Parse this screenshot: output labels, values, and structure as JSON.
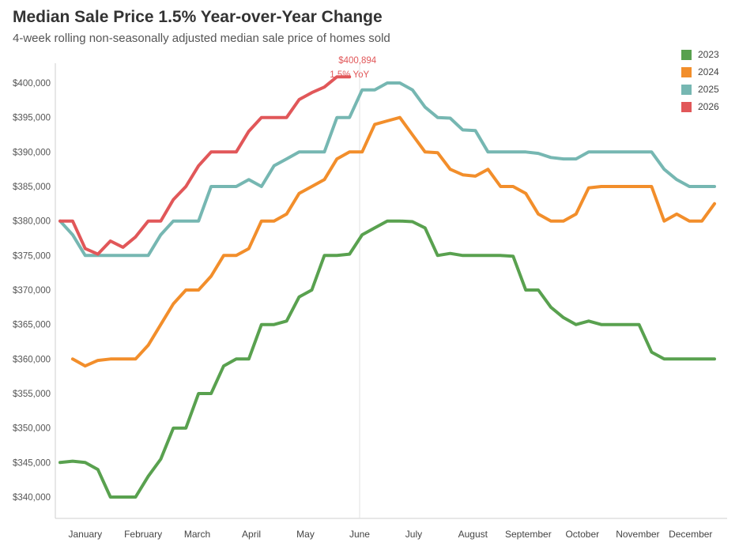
{
  "chart_data": {
    "type": "line",
    "title": "Median Sale Price 1.5% Year-over-Year Change",
    "subtitle": "4-week rolling non-seasonally adjusted median sale price of homes sold",
    "xlabel": "",
    "ylabel": "",
    "ylim": [
      337500,
      403000
    ],
    "xlim": [
      0,
      52
    ],
    "grid": false,
    "legend_position": "top-right",
    "y_ticks": [
      340000,
      345000,
      350000,
      355000,
      360000,
      365000,
      370000,
      375000,
      380000,
      385000,
      390000,
      395000,
      400000
    ],
    "y_tick_labels": [
      "$340,000",
      "$345,000",
      "$350,000",
      "$355,000",
      "$360,000",
      "$365,000",
      "$370,000",
      "$375,000",
      "$380,000",
      "$385,000",
      "$390,000",
      "$395,000",
      "$400,000"
    ],
    "x_ticks": [
      {
        "label": "January",
        "x": 2
      },
      {
        "label": "February",
        "x": 6.6
      },
      {
        "label": "March",
        "x": 10.9
      },
      {
        "label": "April",
        "x": 15.2
      },
      {
        "label": "May",
        "x": 19.5
      },
      {
        "label": "June",
        "x": 23.8
      },
      {
        "label": "July",
        "x": 28.1
      },
      {
        "label": "August",
        "x": 32.8
      },
      {
        "label": "September",
        "x": 37.2
      },
      {
        "label": "October",
        "x": 41.5
      },
      {
        "label": "November",
        "x": 45.9
      },
      {
        "label": "December",
        "x": 50.1
      }
    ],
    "reference_line_x": 23.8,
    "series": [
      {
        "name": "2023",
        "color": "#59A14F",
        "x": [
          0,
          1,
          2,
          3,
          4,
          5,
          6,
          7,
          8,
          9,
          10,
          11,
          12,
          13,
          14,
          15,
          16,
          17,
          18,
          19,
          20,
          21,
          22,
          23,
          24,
          25,
          26,
          27,
          28,
          29,
          30,
          31,
          32,
          33,
          34,
          35,
          36,
          37,
          38,
          39,
          40,
          41,
          42,
          43,
          44,
          45,
          46,
          47,
          48,
          49,
          50,
          51,
          52
        ],
        "values": [
          345000,
          345200,
          345000,
          344000,
          340000,
          340000,
          340000,
          343000,
          345500,
          350000,
          350000,
          355000,
          355000,
          359000,
          360000,
          360000,
          365000,
          365000,
          365500,
          369000,
          370000,
          375000,
          375000,
          375200,
          378000,
          379000,
          380000,
          380000,
          379900,
          379000,
          375000,
          375300,
          375000,
          375000,
          375000,
          375000,
          374900,
          370000,
          370000,
          367500,
          366000,
          365000,
          365500,
          365000,
          365000,
          365000,
          365000,
          361000,
          360000,
          360000,
          360000,
          360000,
          360000
        ]
      },
      {
        "name": "2024",
        "color": "#F28E2B",
        "x": [
          1,
          2,
          3,
          4,
          5,
          6,
          7,
          8,
          9,
          10,
          11,
          12,
          13,
          14,
          15,
          16,
          17,
          18,
          19,
          20,
          21,
          22,
          23,
          24,
          25,
          26,
          27,
          28,
          29,
          30,
          31,
          32,
          33,
          34,
          35,
          36,
          37,
          38,
          39,
          40,
          41,
          42,
          43,
          44,
          45,
          46,
          47,
          48,
          49,
          50,
          51,
          52
        ],
        "values": [
          360000,
          359000,
          359800,
          360000,
          360000,
          360000,
          362000,
          365000,
          368000,
          370000,
          370000,
          372000,
          375000,
          375000,
          376000,
          380000,
          380000,
          381000,
          384000,
          385000,
          386000,
          389000,
          390000,
          390000,
          394000,
          394500,
          395000,
          392500,
          390000,
          389900,
          387500,
          386700,
          386500,
          387500,
          385000,
          385000,
          384000,
          381000,
          380000,
          380000,
          381000,
          384800,
          385000,
          385000,
          385000,
          385000,
          385000,
          380000,
          381000,
          380000,
          380000,
          382500
        ]
      },
      {
        "name": "2025",
        "color": "#76B7B2",
        "x": [
          0,
          1,
          2,
          3,
          4,
          5,
          6,
          7,
          8,
          9,
          10,
          11,
          12,
          13,
          14,
          15,
          16,
          17,
          18,
          19,
          20,
          21,
          22,
          23,
          24,
          25,
          26,
          27,
          28,
          29,
          30,
          31,
          32,
          33,
          34,
          35,
          36,
          37,
          38,
          39,
          40,
          41,
          42,
          43,
          44,
          45,
          46,
          47,
          48,
          49,
          50,
          51,
          52
        ],
        "values": [
          380000,
          378000,
          375000,
          375000,
          375000,
          375000,
          375000,
          375000,
          378000,
          380000,
          380000,
          380000,
          385000,
          385000,
          385000,
          386000,
          385000,
          388000,
          389000,
          390000,
          390000,
          390000,
          395000,
          395000,
          399000,
          399000,
          400000,
          400000,
          399000,
          396500,
          395000,
          394900,
          393200,
          393100,
          390000,
          390000,
          390000,
          390000,
          389800,
          389200,
          389000,
          389000,
          390000,
          390000,
          390000,
          390000,
          390000,
          390000,
          387500,
          386000,
          385000,
          385000,
          385000
        ]
      },
      {
        "name": "2026",
        "color": "#E15759",
        "x": [
          0,
          1,
          2,
          3,
          4,
          5,
          6,
          7,
          8,
          9,
          10,
          11,
          12,
          13,
          14,
          15,
          16,
          17,
          18,
          19,
          20,
          21,
          22,
          23
        ],
        "values": [
          380000,
          380000,
          376000,
          375200,
          377100,
          376200,
          377700,
          380000,
          380000,
          383100,
          385000,
          388000,
          390000,
          390000,
          390000,
          393000,
          395000,
          395000,
          395000,
          397600,
          398600,
          399400,
          400894,
          400894
        ]
      }
    ],
    "annotations": [
      {
        "series": "2026",
        "x": 23,
        "y": 400894,
        "line1": "$400,894",
        "line2": "1.5% YoY"
      }
    ]
  }
}
